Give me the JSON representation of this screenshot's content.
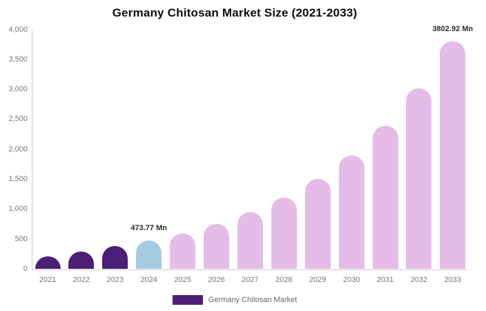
{
  "chart": {
    "title": "Germany Chitosan Market Size (2021-2033)",
    "legend": {
      "label": "Germany Chitosan Market",
      "swatch_color": "#4B1E77"
    }
  },
  "chart_data": {
    "type": "bar",
    "title": "Germany Chitosan Market Size (2021-2033)",
    "categories": [
      "2021",
      "2022",
      "2023",
      "2024",
      "2025",
      "2026",
      "2027",
      "2028",
      "2029",
      "2030",
      "2031",
      "2032",
      "2033"
    ],
    "values": [
      210,
      300,
      390,
      473.77,
      597,
      753,
      949,
      1196,
      1507,
      1899,
      2394,
      3017,
      3802.92
    ],
    "unit": "Mn",
    "bar_colors": [
      "#4B1E77",
      "#4B1E77",
      "#4B1E77",
      "#A6CBE0",
      "#E4BCE7",
      "#E4BCE7",
      "#E4BCE7",
      "#E4BCE7",
      "#E4BCE7",
      "#E4BCE7",
      "#E4BCE7",
      "#E4BCE7",
      "#E4BCE7"
    ],
    "ylim": [
      0,
      4000
    ],
    "y_tick_step": 500,
    "y_tick_labels": [
      "0",
      "500",
      "1,000",
      "1,500",
      "2,000",
      "2,500",
      "3,000",
      "3,500",
      "4,000"
    ],
    "xlabel": "",
    "ylabel": "",
    "grid": false,
    "legend_position": "bottom",
    "legend_entries": [
      "Germany Chitosan Market"
    ],
    "annotations": [
      {
        "category": "2024",
        "label": "473.77 Mn"
      },
      {
        "category": "2033",
        "label": "3802.92 Mn"
      }
    ],
    "axis_color": "#cccccc",
    "tick_label_color": "#757575"
  }
}
